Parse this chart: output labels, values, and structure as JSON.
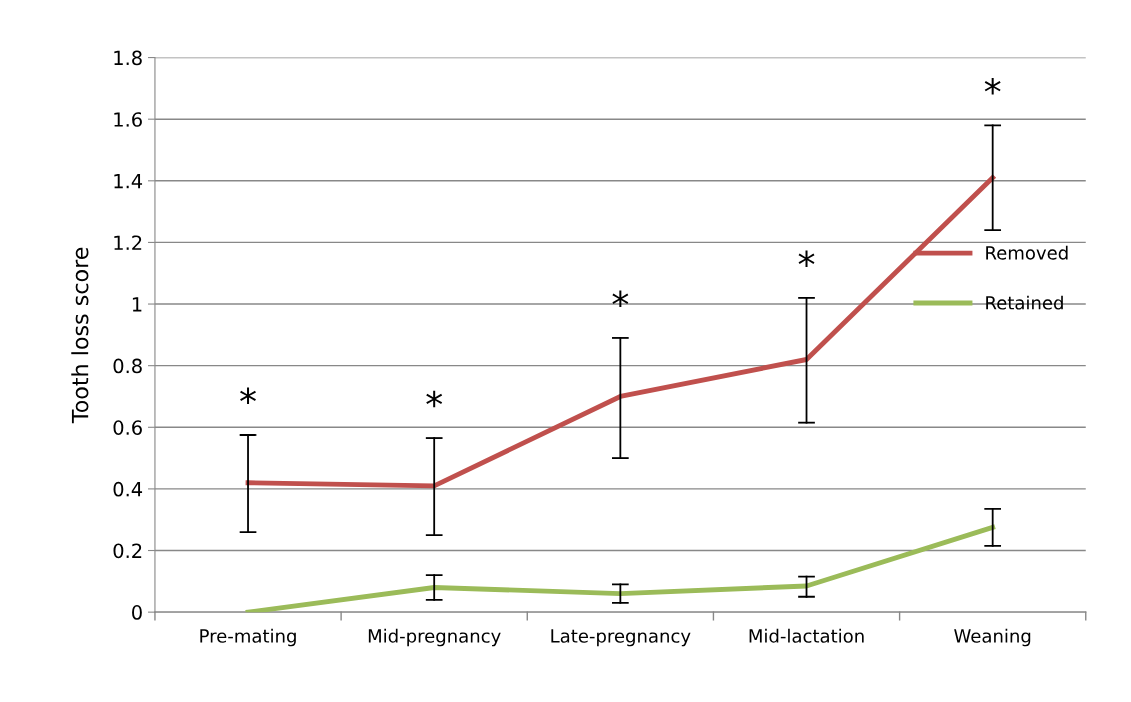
{
  "chart_data": {
    "type": "line",
    "ylabel": "Tooth loss score",
    "categories": [
      "Pre-mating",
      "Mid-pregnancy",
      "Late-pregnancy",
      "Mid-lactation",
      "Weaning"
    ],
    "series": [
      {
        "name": "Removed",
        "color": "#c0504d",
        "values": [
          0.42,
          0.41,
          0.7,
          0.82,
          1.41
        ],
        "errors": [
          [
            0.26,
            0.575
          ],
          [
            0.25,
            0.565
          ],
          [
            0.5,
            0.89
          ],
          [
            0.615,
            1.02
          ],
          [
            1.24,
            1.58
          ]
        ]
      },
      {
        "name": "Retained",
        "color": "#9bbb59",
        "values": [
          0,
          0.08,
          0.06,
          0.085,
          0.275
        ],
        "errors": [
          null,
          [
            0.04,
            0.12
          ],
          [
            0.03,
            0.09
          ],
          [
            0.05,
            0.115
          ],
          [
            0.215,
            0.335
          ]
        ]
      }
    ],
    "ylim": [
      0,
      1.8
    ],
    "yticks": [
      {
        "value": 0,
        "label": "0"
      },
      0.2,
      0.4,
      0.6,
      0.8,
      {
        "value": 1,
        "label": "1"
      },
      1.2,
      1.4,
      1.6,
      1.8
    ],
    "grid": "y",
    "legend": "right",
    "marker": "none",
    "line_style": "solid",
    "annotations": [
      "*",
      "*",
      "*",
      "*",
      "*"
    ]
  }
}
